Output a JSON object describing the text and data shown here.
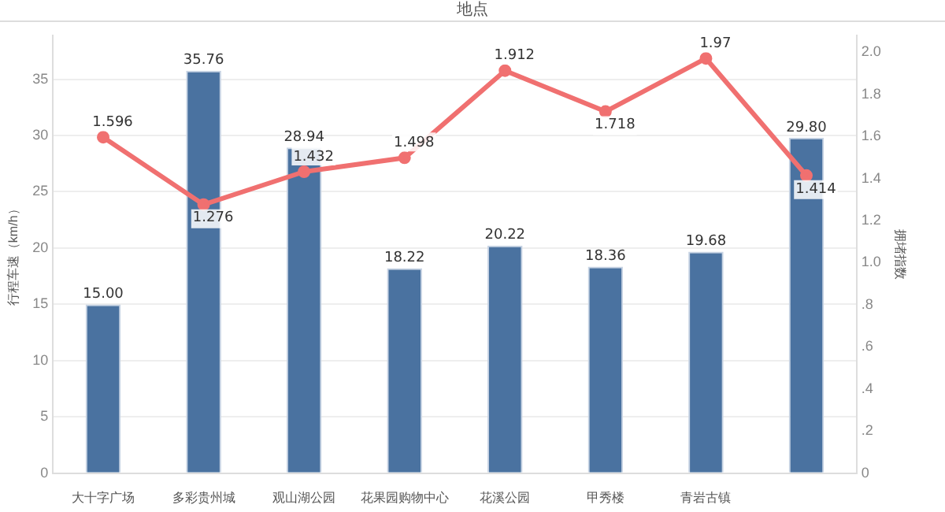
{
  "chart_data": {
    "type": "bar",
    "title": "地点",
    "ylabel": "行程车速（km/h）",
    "y2label": "拥堵指数",
    "categories": [
      "大十字广场",
      "多彩贵州城",
      "观山湖公园",
      "花果园购物中心",
      "花溪公园",
      "甲秀楼",
      "青岩古镇",
      null
    ],
    "series": [
      {
        "color": "#4a72a0",
        "values": [
          15.0,
          35.76,
          28.94,
          18.22,
          20.22,
          18.36,
          19.68,
          29.8
        ],
        "value_labels": [
          "15.00",
          "35.76",
          "28.94",
          "18.22",
          "20.22",
          "18.36",
          "19.68",
          "29.80"
        ]
      },
      {
        "type": "line",
        "axis": "y2",
        "color": "#f07070",
        "values": [
          1.596,
          1.276,
          1.432,
          1.498,
          1.912,
          1.718,
          1.97,
          1.414
        ],
        "value_labels": [
          "1.596",
          "1.276",
          "1.432",
          "1.498",
          "1.912",
          "1.718",
          "1.97",
          "1.414"
        ]
      }
    ],
    "ylim": [
      0,
      38.9
    ],
    "yticks": [
      0,
      5,
      10,
      15,
      20,
      25,
      30,
      35
    ],
    "y2lim": [
      0,
      2.08
    ],
    "y2ticks": [
      0,
      {
        "value": 0.2,
        "label": ".2"
      },
      {
        "value": 0.4,
        "label": ".4"
      },
      {
        "value": 0.6,
        "label": ".6"
      },
      {
        "value": 0.8,
        "label": ".8"
      },
      {
        "value": 1.0,
        "label": "1.0"
      },
      {
        "value": 1.2,
        "label": "1.2"
      },
      {
        "value": 1.4,
        "label": "1.4"
      },
      {
        "value": 1.6,
        "label": "1.6"
      },
      {
        "value": 1.8,
        "label": "1.8"
      },
      {
        "value": 2.0,
        "label": "2.0"
      }
    ],
    "grid": "y",
    "legend": false,
    "marker": "circle",
    "line_style": "solid"
  }
}
